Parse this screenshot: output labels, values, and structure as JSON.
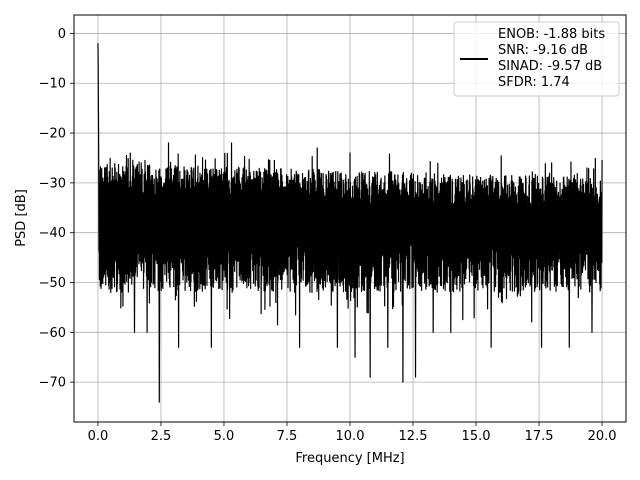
{
  "chart_data": {
    "type": "line",
    "xlabel": "Frequency [MHz]",
    "ylabel": "PSD [dB]",
    "xlim": [
      -0.95,
      20.95
    ],
    "ylim": [
      -78,
      3.7
    ],
    "x_ticks": [
      0.0,
      2.5,
      5.0,
      7.5,
      10.0,
      12.5,
      15.0,
      17.5,
      20.0
    ],
    "x_tick_labels": [
      "0.0",
      "2.5",
      "5.0",
      "7.5",
      "10.0",
      "12.5",
      "15.0",
      "17.5",
      "20.0"
    ],
    "y_ticks": [
      0,
      -10,
      -20,
      -30,
      -40,
      -50,
      -60,
      -70
    ],
    "y_tick_labels": [
      "0",
      "−10",
      "−20",
      "−30",
      "−40",
      "−50",
      "−60",
      "−70"
    ],
    "grid": true,
    "legend_position": "upper right",
    "series": [
      {
        "name": "ENOB: -1.88 bits\nSNR: -9.16 dB\nSINAD: -9.57 dB\nSFDR: 1.74",
        "color": "#000000",
        "x_range": [
          0,
          20
        ],
        "peak": {
          "x": 0.0,
          "y": 0
        },
        "noise_floor_band": {
          "upper": -30,
          "lower": -44
        },
        "typical_upper_excursion": -24,
        "typical_lower_excursion": -55,
        "min_point": {
          "x": 2.43,
          "y": -74
        },
        "notable_dips": [
          {
            "x": 1.45,
            "y": -60
          },
          {
            "x": 1.95,
            "y": -60
          },
          {
            "x": 3.2,
            "y": -63
          },
          {
            "x": 4.5,
            "y": -63
          },
          {
            "x": 8.0,
            "y": -63
          },
          {
            "x": 9.5,
            "y": -63
          },
          {
            "x": 10.2,
            "y": -65
          },
          {
            "x": 10.8,
            "y": -69
          },
          {
            "x": 11.5,
            "y": -63
          },
          {
            "x": 12.1,
            "y": -70
          },
          {
            "x": 12.6,
            "y": -69
          },
          {
            "x": 13.3,
            "y": -60
          },
          {
            "x": 14.0,
            "y": -60
          },
          {
            "x": 15.6,
            "y": -63
          },
          {
            "x": 17.6,
            "y": -63
          },
          {
            "x": 18.7,
            "y": -63
          },
          {
            "x": 19.6,
            "y": -60
          }
        ],
        "notable_peaks": [
          {
            "x": 2.8,
            "y": -22
          },
          {
            "x": 5.3,
            "y": -22
          },
          {
            "x": 8.7,
            "y": -23
          },
          {
            "x": 10.0,
            "y": -24
          },
          {
            "x": 18.0,
            "y": -26
          },
          {
            "x": 19.4,
            "y": -27
          }
        ]
      }
    ]
  },
  "legend": {
    "lines": [
      "ENOB: -1.88 bits",
      "SNR: -9.16 dB",
      "SINAD: -9.57 dB",
      "SFDR: 1.74"
    ]
  }
}
